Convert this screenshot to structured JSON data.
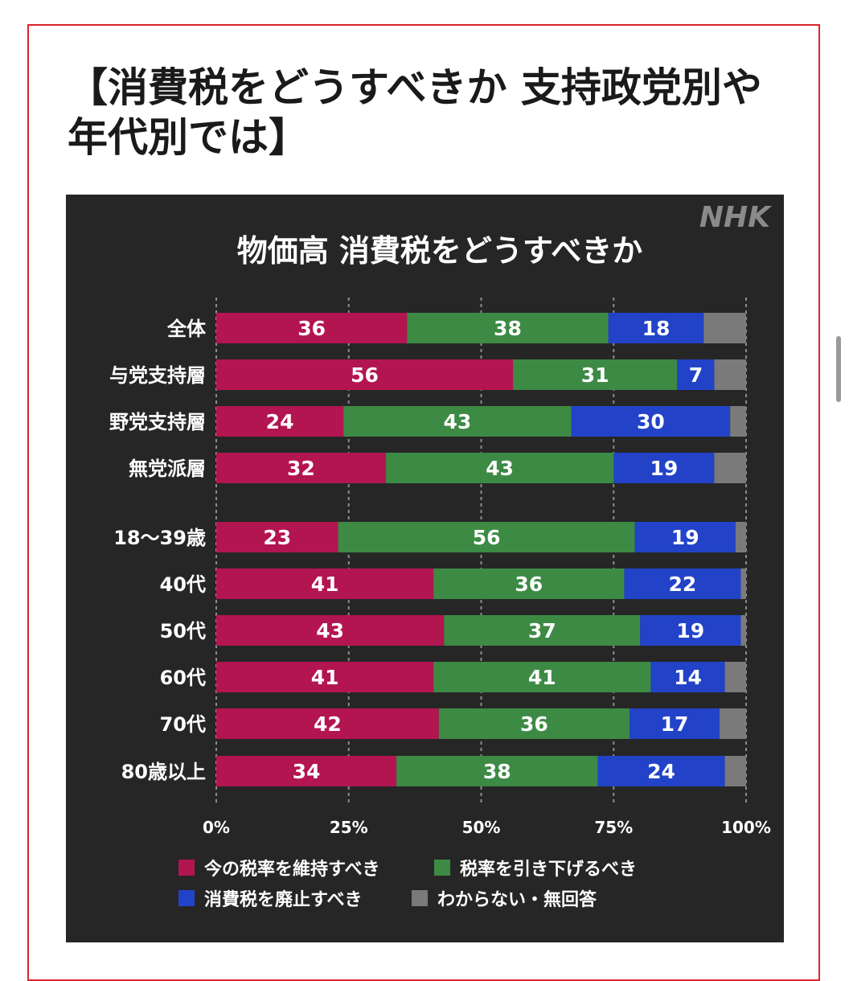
{
  "page": {
    "heading": "【消費税をどうすべきか 支持政党別や年代別では】"
  },
  "brand": {
    "logo_text": "NHK",
    "logo_color": "#8a8a8a"
  },
  "colors": {
    "panel_bg": "#262626",
    "frame_border": "#d9262b",
    "label_text": "#ffffff",
    "gridline": "#8c8c8c"
  },
  "chart_data": {
    "type": "bar",
    "orientation": "horizontal",
    "stacked": true,
    "title": "物価高 消費税をどうすべきか",
    "categories": [
      "全体",
      "与党支持層",
      "野党支持層",
      "無党派層",
      "18〜39歳",
      "40代",
      "50代",
      "60代",
      "70代",
      "80歳以上"
    ],
    "series": [
      {
        "name": "今の税率を維持すべき",
        "color": "#b31550",
        "values": [
          36,
          56,
          24,
          32,
          23,
          41,
          43,
          41,
          42,
          34
        ],
        "show_labels": true
      },
      {
        "name": "税率を引き下げるべき",
        "color": "#3d8a45",
        "values": [
          38,
          31,
          43,
          43,
          56,
          36,
          37,
          41,
          36,
          38
        ],
        "show_labels": true
      },
      {
        "name": "消費税を廃止すべき",
        "color": "#2243c8",
        "values": [
          18,
          7,
          30,
          19,
          19,
          22,
          19,
          14,
          17,
          24
        ],
        "show_labels": true
      },
      {
        "name": "わからない・無回答",
        "color": "#7a7a7a",
        "values": [
          8,
          6,
          3,
          6,
          2,
          1,
          1,
          4,
          5,
          4
        ],
        "show_labels": false
      }
    ],
    "xlim": [
      0,
      100
    ],
    "x_ticks": [
      "0%",
      "25%",
      "50%",
      "75%",
      "100%"
    ],
    "grid": true,
    "legend_position": "bottom"
  }
}
